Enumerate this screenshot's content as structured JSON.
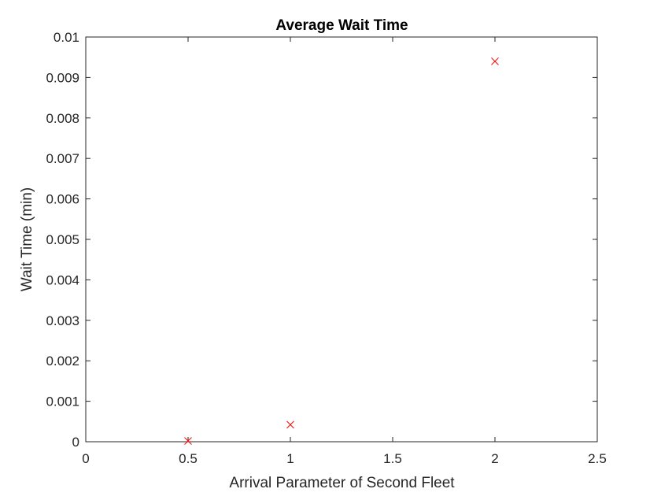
{
  "chart_data": {
    "type": "scatter",
    "title": "Average Wait Time",
    "xlabel": "Arrival Parameter of Second Fleet",
    "ylabel": "Wait Time (min)",
    "xlim": [
      0,
      2.5
    ],
    "ylim": [
      0,
      0.01
    ],
    "xticks": [
      0,
      0.5,
      1,
      1.5,
      2,
      2.5
    ],
    "xtick_labels": [
      "0",
      "0.5",
      "1",
      "1.5",
      "2",
      "2.5"
    ],
    "yticks": [
      0,
      0.001,
      0.002,
      0.003,
      0.004,
      0.005,
      0.006,
      0.007,
      0.008,
      0.009,
      0.01
    ],
    "ytick_labels": [
      "0",
      "0.001",
      "0.002",
      "0.003",
      "0.004",
      "0.005",
      "0.006",
      "0.007",
      "0.008",
      "0.009",
      "0.01"
    ],
    "grid": false,
    "marker": "x",
    "series": [
      {
        "color": "#ff0000",
        "x": [
          0.5,
          1,
          2
        ],
        "y": [
          2e-05,
          0.00042,
          0.0094
        ]
      }
    ],
    "axis_color": "#262626"
  }
}
